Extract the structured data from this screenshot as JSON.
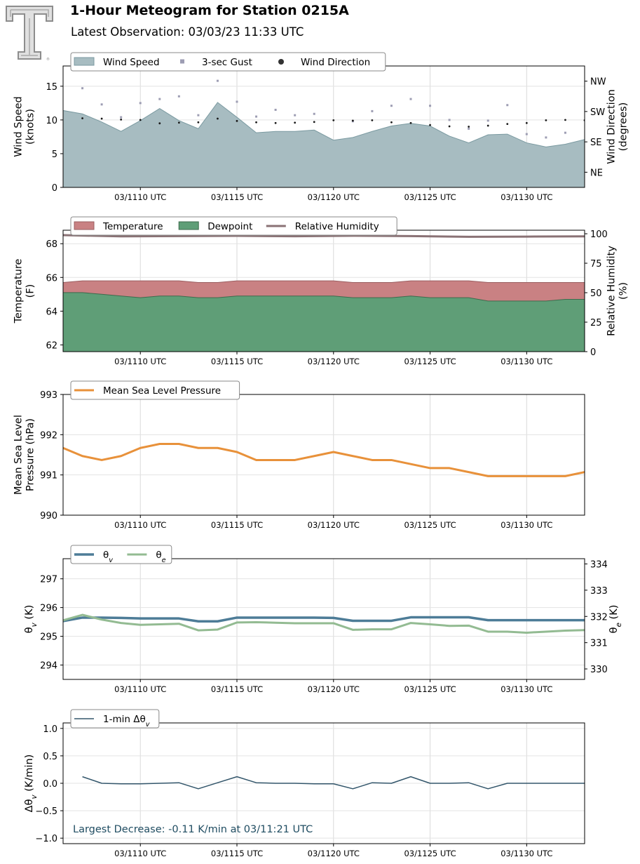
{
  "header": {
    "title": "1-Hour Meteogram for Station 0215A",
    "subtitle": "Latest Observation: 03/03/23 11:33 UTC"
  },
  "logo": {
    "icon": "texas-tech-double-t-logo-icon"
  },
  "colors": {
    "wind_fill": "#a7bcc1",
    "wind_line": "#7b9aa1",
    "gust": "#9d9db3",
    "direction": "#1a1a1a",
    "temperature": "#c98183",
    "dewpoint": "#5f9e77",
    "rh": "#8a7275",
    "pressure": "#e8913a",
    "theta_v": "#4d7c97",
    "theta_e": "#93bb92",
    "dthetav": "#33566b",
    "annotation": "#1f4c61"
  },
  "chart_data": [
    {
      "type": "area",
      "ylabel": "Wind Speed\n(knots)",
      "ylabel_right": "Wind Direction\n(degrees)",
      "ylim": [
        0,
        18
      ],
      "yticks": [
        0,
        5,
        10,
        15
      ],
      "yticks_right": [
        {
          "label": "NE",
          "value": 45
        },
        {
          "label": "SE",
          "value": 135
        },
        {
          "label": "SW",
          "value": 225
        },
        {
          "label": "NW",
          "value": 315
        }
      ],
      "ylim_right": [
        0,
        360
      ],
      "x_tick_labels": [
        "03/1110 UTC",
        "03/1115 UTC",
        "03/1120 UTC",
        "03/1125 UTC",
        "03/1130 UTC"
      ],
      "x_tick_minutes": [
        10,
        15,
        20,
        25,
        30
      ],
      "xlim_minutes": [
        6,
        33
      ],
      "legend": "top-left",
      "grid": true,
      "series": [
        {
          "name": "Wind Speed",
          "kind": "area",
          "x": [
            6,
            7,
            8,
            9,
            10,
            11,
            12,
            13,
            14,
            15,
            16,
            17,
            18,
            19,
            20,
            21,
            22,
            23,
            24,
            25,
            26,
            27,
            28,
            29,
            30,
            31,
            32,
            33
          ],
          "values": [
            11.4,
            10.9,
            9.7,
            8.3,
            9.9,
            11.7,
            9.9,
            8.7,
            12.6,
            10.4,
            8.1,
            8.3,
            8.3,
            8.5,
            7.0,
            7.4,
            8.3,
            9.1,
            9.5,
            9.1,
            7.6,
            6.6,
            7.8,
            7.9,
            6.6,
            6.0,
            6.4,
            7.1
          ]
        },
        {
          "name": "3-sec Gust",
          "kind": "scatter",
          "x": [
            7,
            8,
            9,
            10,
            11,
            12,
            13,
            14,
            15,
            16,
            17,
            18,
            19,
            21,
            22,
            23,
            24,
            25,
            26,
            27,
            28,
            29,
            30,
            31,
            32
          ],
          "values": [
            14.7,
            12.3,
            10.4,
            12.5,
            13.1,
            13.5,
            10.7,
            15.8,
            12.7,
            10.5,
            11.5,
            10.7,
            10.9,
            9.8,
            11.3,
            12.1,
            13.1,
            12.1,
            10.0,
            8.7,
            9.9,
            12.2,
            7.9,
            7.4,
            8.1
          ]
        },
        {
          "name": "Wind Direction",
          "kind": "scatter-right",
          "x": [
            7,
            8,
            9,
            10,
            11,
            12,
            13,
            14,
            15,
            16,
            17,
            18,
            19,
            20,
            21,
            22,
            23,
            24,
            25,
            26,
            27,
            28,
            29,
            30,
            31,
            32,
            33
          ],
          "values": [
            205,
            204,
            201,
            200,
            190,
            192,
            193,
            204,
            197,
            193,
            191,
            192,
            194,
            199,
            198,
            199,
            193,
            191,
            185,
            181,
            180,
            183,
            188,
            191,
            199,
            200,
            199
          ]
        }
      ]
    },
    {
      "type": "area",
      "ylabel": "Temperature\n(F)",
      "ylabel_right": "Relative Humidity\n(%)",
      "ylim": [
        61.6,
        68.8
      ],
      "yticks": [
        62,
        64,
        66,
        68
      ],
      "ylim_right": [
        0,
        103
      ],
      "yticks_right": [
        0,
        25,
        50,
        75,
        100
      ],
      "x_tick_labels": [
        "03/1110 UTC",
        "03/1115 UTC",
        "03/1120 UTC",
        "03/1125 UTC",
        "03/1130 UTC"
      ],
      "x_tick_minutes": [
        10,
        15,
        20,
        25,
        30
      ],
      "xlim_minutes": [
        6,
        33
      ],
      "legend": "top-left",
      "grid": true,
      "series": [
        {
          "name": "Temperature",
          "kind": "area",
          "x": [
            6,
            7,
            8,
            9,
            10,
            11,
            12,
            13,
            14,
            15,
            16,
            17,
            18,
            19,
            20,
            21,
            22,
            23,
            24,
            25,
            26,
            27,
            28,
            29,
            30,
            31,
            32,
            33
          ],
          "values": [
            65.7,
            65.8,
            65.8,
            65.8,
            65.8,
            65.8,
            65.8,
            65.7,
            65.7,
            65.8,
            65.8,
            65.8,
            65.8,
            65.8,
            65.8,
            65.7,
            65.7,
            65.7,
            65.8,
            65.8,
            65.8,
            65.8,
            65.7,
            65.7,
            65.7,
            65.7,
            65.7,
            65.7
          ]
        },
        {
          "name": "Dewpoint",
          "kind": "area",
          "x": [
            6,
            7,
            8,
            9,
            10,
            11,
            12,
            13,
            14,
            15,
            16,
            17,
            18,
            19,
            20,
            21,
            22,
            23,
            24,
            25,
            26,
            27,
            28,
            29,
            30,
            31,
            32,
            33
          ],
          "values": [
            65.1,
            65.1,
            65.0,
            64.9,
            64.8,
            64.9,
            64.9,
            64.8,
            64.8,
            64.9,
            64.9,
            64.9,
            64.9,
            64.9,
            64.9,
            64.8,
            64.8,
            64.8,
            64.9,
            64.8,
            64.8,
            64.8,
            64.6,
            64.6,
            64.6,
            64.6,
            64.7,
            64.7
          ]
        },
        {
          "name": "Relative Humidity",
          "kind": "line-right",
          "x": [
            6,
            9,
            12,
            15,
            18,
            21,
            24,
            27,
            30,
            33
          ],
          "values": [
            98.8,
            97.8,
            98.0,
            98.2,
            97.9,
            98.3,
            98.0,
            97.4,
            97.6,
            97.8
          ]
        }
      ]
    },
    {
      "type": "line",
      "ylabel": "Mean Sea Level\nPressure (hPa)",
      "ylim": [
        990,
        993
      ],
      "yticks": [
        990,
        991,
        992,
        993
      ],
      "x_tick_labels": [
        "03/1110 UTC",
        "03/1115 UTC",
        "03/1120 UTC",
        "03/1125 UTC",
        "03/1130 UTC"
      ],
      "x_tick_minutes": [
        10,
        15,
        20,
        25,
        30
      ],
      "xlim_minutes": [
        6,
        33
      ],
      "legend": "top-left",
      "grid": true,
      "series": [
        {
          "name": "Mean Sea Level Pressure",
          "x": [
            6,
            7,
            8,
            9,
            10,
            11,
            12,
            13,
            14,
            15,
            16,
            17,
            18,
            19,
            20,
            21,
            22,
            23,
            24,
            25,
            26,
            27,
            28,
            29,
            30,
            31,
            32,
            33
          ],
          "values": [
            991.67,
            991.47,
            991.37,
            991.47,
            991.67,
            991.77,
            991.77,
            991.67,
            991.67,
            991.57,
            991.37,
            991.37,
            991.37,
            991.47,
            991.57,
            991.47,
            991.37,
            991.37,
            991.27,
            991.17,
            991.17,
            991.07,
            990.97,
            990.97,
            990.97,
            990.97,
            990.97,
            991.07
          ]
        }
      ]
    },
    {
      "type": "line",
      "ylabel": "θv (K)",
      "ylabel_right": "θe (K)",
      "ylim": [
        293.5,
        297.7
      ],
      "yticks": [
        294,
        295,
        296,
        297
      ],
      "ylim_right": [
        329.6,
        334.2
      ],
      "yticks_right": [
        330,
        331,
        332,
        333,
        334
      ],
      "x_tick_labels": [
        "03/1110 UTC",
        "03/1115 UTC",
        "03/1120 UTC",
        "03/1125 UTC",
        "03/1130 UTC"
      ],
      "x_tick_minutes": [
        10,
        15,
        20,
        25,
        30
      ],
      "xlim_minutes": [
        6,
        33
      ],
      "legend": "top-left",
      "grid": true,
      "series": [
        {
          "name": "θv",
          "axis": "left",
          "x": [
            6,
            7,
            8,
            9,
            10,
            11,
            12,
            13,
            14,
            15,
            16,
            17,
            18,
            19,
            20,
            21,
            22,
            23,
            24,
            25,
            26,
            27,
            28,
            29,
            30,
            31,
            32,
            33
          ],
          "values": [
            295.53,
            295.65,
            295.65,
            295.64,
            295.62,
            295.62,
            295.62,
            295.52,
            295.52,
            295.65,
            295.65,
            295.65,
            295.65,
            295.65,
            295.64,
            295.54,
            295.54,
            295.54,
            295.66,
            295.66,
            295.66,
            295.66,
            295.56,
            295.56,
            295.56,
            295.56,
            295.56,
            295.56
          ]
        },
        {
          "name": "θe",
          "axis": "right",
          "x": [
            6,
            7,
            8,
            9,
            10,
            11,
            12,
            13,
            14,
            15,
            16,
            17,
            18,
            19,
            20,
            21,
            22,
            23,
            24,
            25,
            26,
            27,
            28,
            29,
            30,
            31,
            32,
            33
          ],
          "values": [
            331.85,
            332.06,
            331.88,
            331.75,
            331.68,
            331.7,
            331.72,
            331.47,
            331.5,
            331.77,
            331.78,
            331.76,
            331.74,
            331.74,
            331.74,
            331.49,
            331.51,
            331.51,
            331.75,
            331.7,
            331.64,
            331.65,
            331.42,
            331.42,
            331.38,
            331.42,
            331.46,
            331.48
          ]
        }
      ]
    },
    {
      "type": "line",
      "ylabel": "Δθv (K/min)",
      "ylim": [
        -1.1,
        1.1
      ],
      "yticks": [
        -1.0,
        -0.5,
        0.0,
        0.5,
        1.0
      ],
      "x_tick_labels": [
        "03/1110 UTC",
        "03/1115 UTC",
        "03/1120 UTC",
        "03/1125 UTC",
        "03/1130 UTC"
      ],
      "x_tick_minutes": [
        10,
        15,
        20,
        25,
        30
      ],
      "xlim_minutes": [
        6,
        33
      ],
      "legend": "top-left",
      "grid": true,
      "annotation": "Largest Decrease: -0.11 K/min at 03/11:21 UTC",
      "series": [
        {
          "name": "1-min Δθv",
          "x": [
            7,
            8,
            9,
            10,
            11,
            12,
            13,
            14,
            15,
            16,
            17,
            18,
            19,
            20,
            21,
            22,
            23,
            24,
            25,
            26,
            27,
            28,
            29,
            30,
            31,
            32,
            33
          ],
          "values": [
            0.12,
            0.0,
            -0.01,
            -0.01,
            0.0,
            0.01,
            -0.1,
            0.01,
            0.12,
            0.01,
            0.0,
            0.0,
            -0.01,
            -0.01,
            -0.1,
            0.01,
            0.0,
            0.12,
            0.0,
            0.0,
            0.01,
            -0.1,
            0.0,
            0.0,
            0.0,
            0.0,
            0.0
          ]
        }
      ]
    }
  ]
}
